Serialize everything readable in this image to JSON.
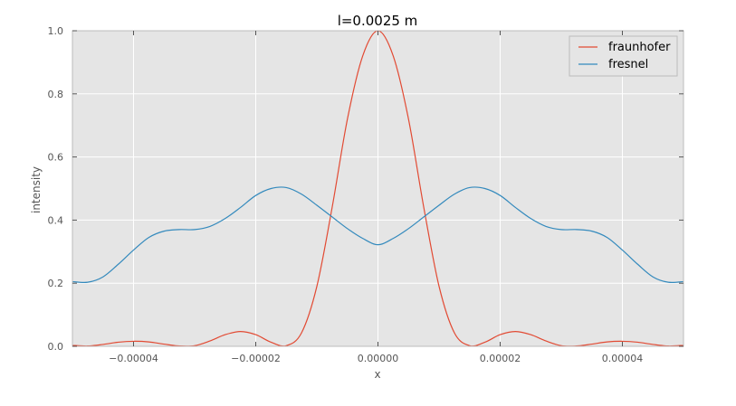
{
  "chart_data": {
    "type": "line",
    "title": "l=0.0025 m",
    "xlabel": "x",
    "ylabel": "intensity",
    "xlim": [
      -5e-05,
      5e-05
    ],
    "ylim": [
      0.0,
      1.0
    ],
    "xticks": [
      -4e-05,
      -2e-05,
      0.0,
      2e-05,
      4e-05
    ],
    "xtick_labels": [
      "−0.00004",
      "−0.00002",
      "0.00000",
      "0.00002",
      "0.00004"
    ],
    "yticks": [
      0.0,
      0.2,
      0.4,
      0.6,
      0.8,
      1.0
    ],
    "ytick_labels": [
      "0.0",
      "0.2",
      "0.4",
      "0.6",
      "0.8",
      "1.0"
    ],
    "grid": true,
    "background": "#e5e5e5",
    "legend_position": "top-right",
    "series": [
      {
        "name": "fraunhofer",
        "color": "#e24a33",
        "x": [
          -5e-05,
          -4.75e-05,
          -4.5e-05,
          -4.25e-05,
          -4e-05,
          -3.75e-05,
          -3.5e-05,
          -3.25e-05,
          -3e-05,
          -2.75e-05,
          -2.5e-05,
          -2.25e-05,
          -2e-05,
          -1.75e-05,
          -1.5e-05,
          -1.25e-05,
          -1e-05,
          -7.5e-06,
          -5e-06,
          -2.5e-06,
          0.0,
          2.5e-06,
          5e-06,
          7.5e-06,
          1e-05,
          1.25e-05,
          1.5e-05,
          1.75e-05,
          2e-05,
          2.25e-05,
          2.5e-05,
          2.75e-05,
          3e-05,
          3.25e-05,
          3.5e-05,
          3.75e-05,
          4e-05,
          4.25e-05,
          4.5e-05,
          4.75e-05,
          5e-05
        ],
        "y": [
          0.003,
          0.001,
          0.006,
          0.013,
          0.016,
          0.014,
          0.007,
          0.001,
          0.002,
          0.017,
          0.037,
          0.047,
          0.037,
          0.013,
          0.002,
          0.043,
          0.19,
          0.44,
          0.72,
          0.92,
          1.0,
          0.92,
          0.72,
          0.44,
          0.19,
          0.043,
          0.002,
          0.013,
          0.037,
          0.047,
          0.037,
          0.017,
          0.002,
          0.001,
          0.007,
          0.014,
          0.016,
          0.013,
          0.006,
          0.001,
          0.003
        ]
      },
      {
        "name": "fresnel",
        "color": "#348abd",
        "x": [
          -5e-05,
          -4.75e-05,
          -4.5e-05,
          -4.25e-05,
          -4e-05,
          -3.75e-05,
          -3.5e-05,
          -3.25e-05,
          -3e-05,
          -2.75e-05,
          -2.5e-05,
          -2.25e-05,
          -2e-05,
          -1.75e-05,
          -1.5e-05,
          -1.25e-05,
          -1e-05,
          -7.5e-06,
          -5e-06,
          -2.5e-06,
          0.0,
          2.5e-06,
          5e-06,
          7.5e-06,
          1e-05,
          1.25e-05,
          1.5e-05,
          1.75e-05,
          2e-05,
          2.25e-05,
          2.5e-05,
          2.75e-05,
          3e-05,
          3.25e-05,
          3.5e-05,
          3.75e-05,
          4e-05,
          4.25e-05,
          4.5e-05,
          4.75e-05,
          5e-05
        ],
        "y": [
          0.205,
          0.203,
          0.22,
          0.26,
          0.305,
          0.345,
          0.365,
          0.37,
          0.37,
          0.38,
          0.405,
          0.44,
          0.478,
          0.5,
          0.503,
          0.482,
          0.447,
          0.41,
          0.373,
          0.342,
          0.322,
          0.342,
          0.373,
          0.41,
          0.447,
          0.482,
          0.503,
          0.5,
          0.478,
          0.44,
          0.405,
          0.38,
          0.37,
          0.37,
          0.365,
          0.345,
          0.305,
          0.26,
          0.22,
          0.203,
          0.205
        ]
      }
    ]
  }
}
